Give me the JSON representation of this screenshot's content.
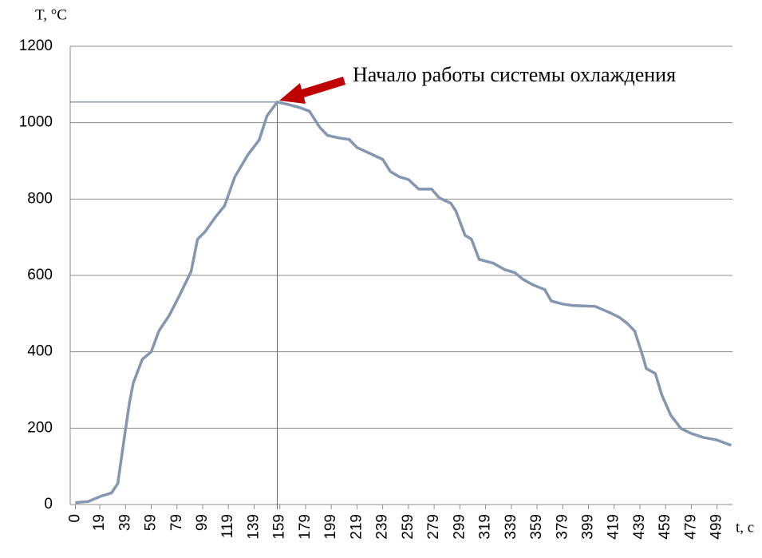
{
  "chart_data": {
    "type": "line",
    "ylabel": "T, °C",
    "xlabel": "t, c",
    "annotation": "Начало работы системы охлаждения",
    "x": [
      0,
      10,
      20,
      28,
      33,
      37,
      42,
      45,
      52,
      59,
      65,
      73,
      81,
      90,
      95,
      101,
      109,
      116,
      124,
      134,
      143,
      149,
      157,
      165,
      174,
      182,
      190,
      196,
      205,
      213,
      219,
      230,
      239,
      245,
      252,
      259,
      267,
      277,
      283,
      292,
      296,
      303,
      308,
      314,
      325,
      334,
      342,
      348,
      356,
      365,
      370,
      379,
      387,
      404,
      416,
      423,
      429,
      435,
      441,
      444,
      451,
      456,
      463,
      471,
      479,
      488,
      499,
      510
    ],
    "values": [
      5,
      8,
      22,
      30,
      55,
      150,
      265,
      318,
      380,
      400,
      455,
      495,
      548,
      610,
      695,
      715,
      753,
      782,
      858,
      915,
      955,
      1018,
      1054,
      1048,
      1040,
      1030,
      988,
      967,
      960,
      956,
      935,
      918,
      904,
      872,
      858,
      851,
      826,
      826,
      803,
      789,
      768,
      705,
      695,
      642,
      632,
      615,
      607,
      590,
      575,
      563,
      533,
      525,
      521,
      519,
      502,
      490,
      475,
      454,
      391,
      356,
      343,
      287,
      234,
      199,
      186,
      176,
      169,
      155
    ],
    "color": "#8497b0",
    "xlim": [
      -4,
      511
    ],
    "xticks": [
      0,
      19,
      39,
      59,
      79,
      99,
      119,
      139,
      159,
      179,
      199,
      219,
      239,
      259,
      279,
      299,
      319,
      339,
      359,
      379,
      399,
      419,
      439,
      459,
      479,
      499
    ],
    "ylim": [
      0,
      1200
    ],
    "yticks": [
      0,
      200,
      400,
      600,
      800,
      1000,
      1200
    ],
    "grid": true
  }
}
